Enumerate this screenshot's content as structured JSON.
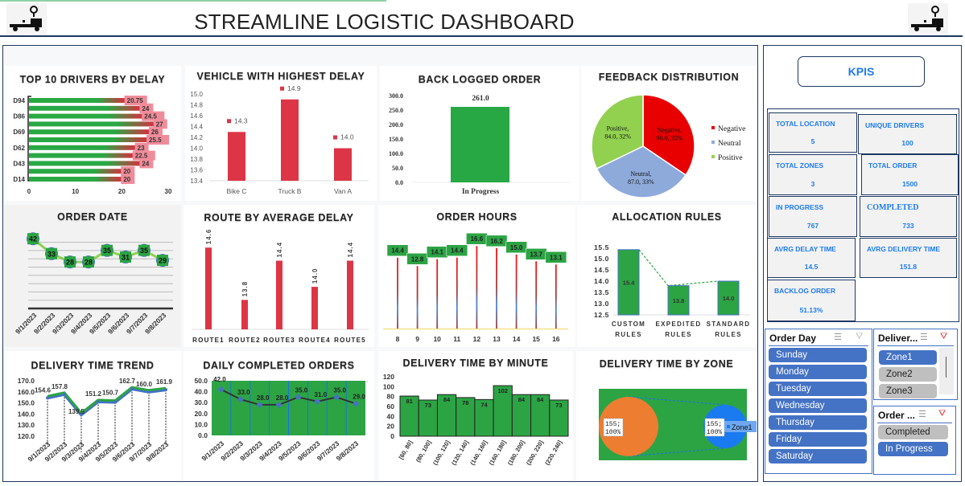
{
  "header": {
    "title": "STREAMLINE LOGISTIC DASHBOARD",
    "logo_icon": "truck-location-icon"
  },
  "colors": {
    "navy": "#1f3864",
    "green": "#2ca444",
    "red": "#dc3545",
    "blue": "#4472c4",
    "kpi_text": "#1e7bf0",
    "orange": "#ed7d31"
  },
  "kpi": {
    "title": "KPIS",
    "cards": [
      {
        "label": "TOTAL LOCATION",
        "value": "5"
      },
      {
        "label": "UNIQUE DRIVERS",
        "value": "100"
      },
      {
        "label": "TOTAL ZONES",
        "value": "3"
      },
      {
        "label": "TOTAL ORDER",
        "value": "1500"
      },
      {
        "label": "IN PROGRESS",
        "value": "767"
      },
      {
        "label": "COMPLETED",
        "value": "733"
      },
      {
        "label": "AVRG DELAY TIME",
        "value": "14.5"
      },
      {
        "label": "AVRG DELIVERY TIME",
        "value": "151.8"
      },
      {
        "label": "BACKLOG ORDER",
        "value": "51.13%"
      }
    ]
  },
  "slicers": [
    {
      "title": "Order Day",
      "items": [
        {
          "label": "Sunday",
          "selected": true
        },
        {
          "label": "Monday",
          "selected": true
        },
        {
          "label": "Tuesday",
          "selected": true
        },
        {
          "label": "Wednesday",
          "selected": true
        },
        {
          "label": "Thursday",
          "selected": true
        },
        {
          "label": "Friday",
          "selected": true
        },
        {
          "label": "Saturday",
          "selected": true
        }
      ]
    },
    {
      "title": "Deliver...",
      "items": [
        {
          "label": "Zone1",
          "selected": true
        },
        {
          "label": "Zone2",
          "selected": false
        },
        {
          "label": "Zone3",
          "selected": false
        }
      ]
    },
    {
      "title": "Order ...",
      "items": [
        {
          "label": "Completed",
          "selected": false
        },
        {
          "label": "In Progress",
          "selected": true
        }
      ]
    }
  ],
  "chart_data": [
    {
      "type": "bar",
      "orientation": "horizontal",
      "title": "TOP 10 DRIVERS BY DELAY",
      "categories": [
        "D94",
        "",
        "D86",
        "",
        "D69",
        "",
        "D62",
        "",
        "D43",
        "",
        "D14"
      ],
      "values": [
        20.75,
        24,
        24.5,
        27,
        26,
        25.5,
        23,
        22.5,
        24,
        20,
        20
      ],
      "xlim": [
        0,
        30
      ],
      "xticks": [
        "0",
        "10",
        "20",
        "30"
      ]
    },
    {
      "type": "bar",
      "title": "VEHICLE WITH HIGHEST DELAY",
      "categories": [
        "Bike C",
        "Truck B",
        "Van A"
      ],
      "values": [
        14.3,
        14.9,
        14.0
      ],
      "data_labels": [
        "14.3",
        "14.9",
        "14.0"
      ],
      "ylim": [
        13.4,
        15.0
      ],
      "yticks": [
        "13.4",
        "13.6",
        "13.8",
        "14.0",
        "14.2",
        "14.4",
        "14.6",
        "14.8",
        "15.0"
      ]
    },
    {
      "type": "bar",
      "title": "BACK LOGGED ORDER",
      "categories": [
        "In Progress"
      ],
      "values": [
        261.0
      ],
      "data_labels": [
        "261.0"
      ],
      "ylim": [
        0,
        300
      ],
      "yticks": [
        "0.0",
        "50.0",
        "100.0",
        "150.0",
        "200.0",
        "250.0",
        "300.0"
      ]
    },
    {
      "type": "pie",
      "title": "FEEDBACK DISTRIBUTION",
      "legend": "right",
      "slices": [
        {
          "name": "Negative",
          "value": 90.0,
          "percent": 35,
          "color": "#e80000",
          "label_lines": [
            "Negative,",
            "90.0, 35%"
          ]
        },
        {
          "name": "Neutral",
          "value": 87.0,
          "percent": 33,
          "color": "#8eaadb",
          "label_lines": [
            "Neutral,",
            "87.0, 33%"
          ]
        },
        {
          "name": "Positive",
          "value": 84.0,
          "percent": 32,
          "color": "#92d050",
          "label_lines": [
            "Positive,",
            "84.0, 32%"
          ]
        }
      ]
    },
    {
      "type": "line",
      "title": "ORDER DATE",
      "categories": [
        "9/1/2023",
        "9/2/2023",
        "9/3/2023",
        "9/4/2023",
        "9/5/2023",
        "9/6/2023",
        "9/7/2023",
        "9/8/2023"
      ],
      "values": [
        42,
        33,
        28,
        28,
        35,
        31,
        35,
        29
      ],
      "ylim": [
        0,
        45
      ],
      "grid": true
    },
    {
      "type": "bar",
      "title": "ROUTE BY AVERAGE DELAY",
      "categories": [
        "ROUTE1",
        "ROUTE2",
        "ROUTE3",
        "ROUTE4",
        "ROUTE5"
      ],
      "values": [
        14.6,
        13.8,
        14.4,
        14.0,
        14.4
      ],
      "data_labels": [
        "14.6",
        "13.8",
        "14.4",
        "14.0",
        "14.4"
      ],
      "ylim": [
        13.35,
        14.75
      ]
    },
    {
      "type": "bar",
      "style": "lollipop",
      "title": "ORDER HOURS",
      "categories": [
        "8",
        "9",
        "10",
        "11",
        "12",
        "13",
        "14",
        "15",
        "16"
      ],
      "values": [
        14.4,
        12.8,
        14.1,
        14.4,
        16.6,
        16.2,
        15.0,
        13.7,
        13.1
      ],
      "data_labels": [
        "14.4",
        "12.8",
        "14.1",
        "14.4",
        "16.6",
        "16.2",
        "15.0",
        "13.7",
        "13.1"
      ],
      "ylim": [
        1,
        18
      ]
    },
    {
      "type": "bar",
      "title": "ALLOCATION RULES",
      "categories": [
        [
          "CUSTOM",
          "RULES"
        ],
        [
          "EXPEDITED",
          "RULES"
        ],
        [
          "STANDARD",
          "RULES"
        ]
      ],
      "values": [
        15.4,
        13.8,
        14.0
      ],
      "data_labels": [
        "15.4",
        "13.8",
        "14.0"
      ],
      "ylim": [
        12.5,
        15.5
      ],
      "yticks": [
        "12.5",
        "13.0",
        "13.5",
        "14.0",
        "14.5",
        "15.0",
        "15.5"
      ]
    },
    {
      "type": "line",
      "title": "DELIVERY TIME TREND",
      "categories": [
        "9/1/2023",
        "9/2/2023",
        "9/3/2023",
        "9/4/2023",
        "9/5/2023",
        "9/6/2023",
        "9/7/2023",
        "9/8/2023"
      ],
      "values": [
        154.6,
        157.8,
        139.5,
        151.2,
        150.7,
        162.7,
        160.0,
        161.9
      ],
      "data_labels": [
        "154.6",
        "157.8",
        "139.5",
        "151.2",
        "150.7",
        "162.7",
        "160.0",
        "161.9"
      ],
      "ylim": [
        120,
        170
      ],
      "yticks": [
        "120.0",
        "130.0",
        "140.0",
        "150.0",
        "160.0",
        "170.0"
      ]
    },
    {
      "type": "line",
      "title": "DAILY COMPLETED ORDERS",
      "categories": [
        "9/1/2023",
        "9/2/2023",
        "9/3/2023",
        "9/4/2023",
        "9/5/2023",
        "9/6/2023",
        "9/7/2023",
        "9/8/2023"
      ],
      "values": [
        42,
        33,
        28,
        28,
        35,
        31,
        35,
        29
      ],
      "data_labels": [
        "42.0",
        "33.0",
        "28.0",
        "28.0",
        "35.0",
        "31.0",
        "35.0",
        "29.0"
      ],
      "ylim": [
        0,
        50
      ],
      "yticks": [
        "0.0",
        "10.0",
        "20.0",
        "30.0",
        "40.0",
        "50.0"
      ]
    },
    {
      "type": "bar",
      "style": "histogram",
      "title": "DELIVERY TIME BY MINUTE",
      "categories": [
        "[60, 80]",
        "(80, 100]",
        "(100, 120]",
        "(120, 140]",
        "(140, 160]",
        "(160, 180]",
        "(180, 200]",
        "(200, 220]",
        "(220, 240]"
      ],
      "values": [
        81,
        73,
        84,
        78,
        74,
        102,
        84,
        84,
        73
      ],
      "ylim": [
        0,
        120
      ],
      "yticks": [
        "0",
        "20",
        "40",
        "60",
        "80",
        "100",
        "120"
      ]
    },
    {
      "type": "pie",
      "style": "pie-of-pie",
      "title": "DELIVERY TIME BY ZONE",
      "legend": "right",
      "slices": [
        {
          "name": "Zone1",
          "value": 155,
          "percent": 100,
          "label_lines": [
            "155;",
            "100%"
          ]
        }
      ]
    }
  ]
}
